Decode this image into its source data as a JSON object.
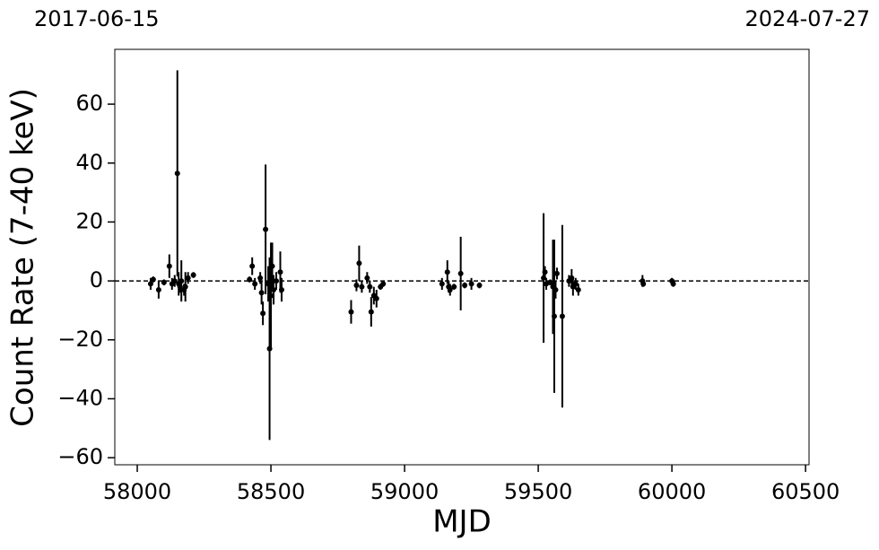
{
  "chart_data": {
    "type": "errorbar",
    "date_start": "2017-06-15",
    "date_end": "2024-07-27",
    "xlabel": "MJD",
    "ylabel": "Count Rate (7-40 keV)",
    "xlim": [
      57916,
      60513
    ],
    "ylim": [
      -62.4,
      78.6
    ],
    "xticks": [
      58000,
      58500,
      59000,
      59500,
      60000,
      60500
    ],
    "yticks": [
      {
        "value": -60,
        "label": "−60"
      },
      {
        "value": -40,
        "label": "−40"
      },
      {
        "value": -20,
        "label": "−20"
      },
      0,
      20,
      40,
      60
    ],
    "reference_line": 0,
    "series": [
      {
        "color": "#000000",
        "x": [
          58050,
          58060,
          58080,
          58100,
          58120,
          58130,
          58140,
          58150,
          58155,
          58160,
          58165,
          58175,
          58180,
          58190,
          58210,
          58420,
          58430,
          58440,
          58460,
          58465,
          58470,
          58480,
          58490,
          58495,
          58500,
          58505,
          58510,
          58520,
          58535,
          58540,
          58800,
          58820,
          58830,
          58840,
          58860,
          58870,
          58875,
          58885,
          58895,
          58910,
          58920,
          59140,
          59160,
          59165,
          59170,
          59185,
          59210,
          59225,
          59250,
          59280,
          59520,
          59525,
          59530,
          59545,
          59555,
          59560,
          59565,
          59570,
          59590,
          59615,
          59625,
          59630,
          59640,
          59650,
          59890,
          59893,
          60000,
          60005
        ],
        "values": [
          -1,
          0.5,
          -3,
          -0.5,
          5,
          -1,
          0,
          36.5,
          -1,
          -2,
          0,
          -3,
          -2,
          1,
          2,
          0.5,
          5,
          -1,
          1,
          -4,
          -11,
          17.5,
          -1,
          -23,
          -5,
          5,
          -3,
          0,
          3,
          -3,
          -10.5,
          -1.5,
          6,
          -2,
          1,
          -2,
          -10.5,
          -5,
          -6,
          -2,
          -1,
          -1,
          3,
          -2,
          -3,
          -2,
          2.5,
          -1.5,
          -1,
          -1.5,
          1,
          3,
          -1,
          -0.5,
          -2,
          -12,
          -3,
          2.5,
          -12,
          0,
          1,
          -2,
          -1,
          -3,
          0,
          -1,
          0,
          -1
        ],
        "errors": [
          2,
          1,
          3,
          1,
          4,
          2,
          2,
          35,
          4,
          2,
          7,
          2,
          5,
          2,
          1,
          1,
          3,
          2,
          2,
          4,
          4,
          22,
          6,
          31,
          18,
          8,
          5,
          3,
          7,
          4,
          4,
          2,
          6,
          2,
          2,
          2,
          5,
          3,
          3,
          1,
          1,
          2,
          4,
          2,
          2,
          1,
          12.5,
          1,
          2,
          1,
          22,
          2,
          2,
          1,
          16,
          26,
          3,
          2,
          31,
          2,
          3,
          3,
          2,
          2,
          2,
          1,
          1,
          1
        ]
      }
    ]
  }
}
